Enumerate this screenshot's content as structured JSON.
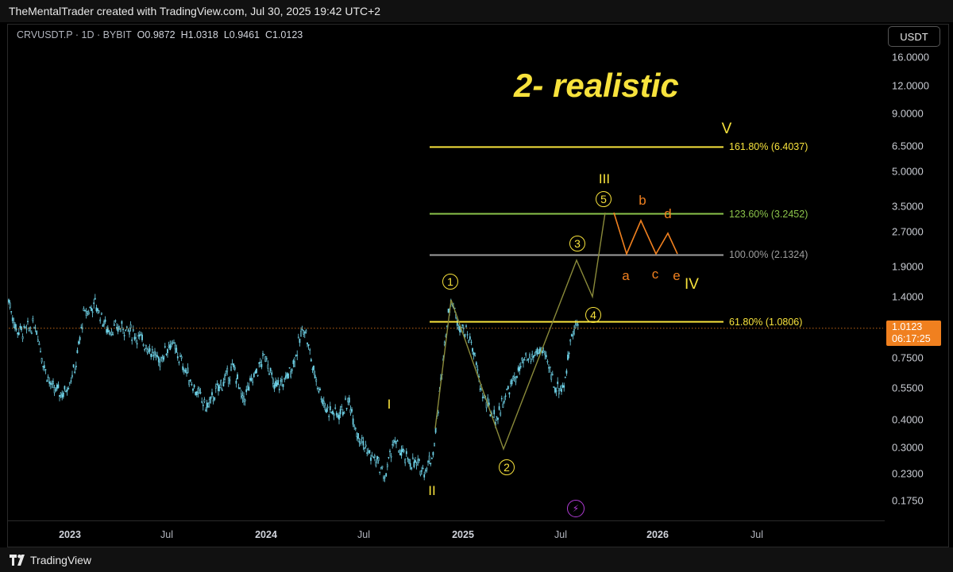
{
  "header": {
    "attribution": "TheMentalTrader created with TradingView.com, Jul 30, 2025 19:42 UTC+2"
  },
  "legend": {
    "symbol": "CRVUSDT.P · 1D · BYBIT",
    "open_label": "O",
    "open": "0.9872",
    "high_label": "H",
    "high": "1.0318",
    "low_label": "L",
    "low": "0.9461",
    "close_label": "C",
    "close": "1.0123"
  },
  "currency_button": "USDT",
  "price_axis": {
    "scale": "log",
    "ticks": [
      "16.0000",
      "12.0000",
      "9.0000",
      "6.5000",
      "5.0000",
      "3.5000",
      "2.7000",
      "1.9000",
      "1.4000",
      "0.7500",
      "0.5500",
      "0.4000",
      "0.3000",
      "0.2300",
      "0.1750"
    ],
    "current_price": "1.0123",
    "countdown": "06:17:25"
  },
  "time_axis": {
    "labels": [
      {
        "text": "2023",
        "year": true
      },
      {
        "text": "Jul",
        "year": false
      },
      {
        "text": "2024",
        "year": true
      },
      {
        "text": "Jul",
        "year": false
      },
      {
        "text": "2025",
        "year": true
      },
      {
        "text": "Jul",
        "year": false
      },
      {
        "text": "2026",
        "year": true
      },
      {
        "text": "Jul",
        "year": false
      }
    ]
  },
  "chart_data": {
    "type": "line",
    "title": "2- realistic",
    "y_scale": "log",
    "fib_levels": [
      {
        "label": "161.80% (6.4037)",
        "value": 6.4037,
        "color": "#f7e23c"
      },
      {
        "label": "123.60% (3.2452)",
        "value": 3.2452,
        "color": "#8bc34a"
      },
      {
        "label": "100.00% (2.1324)",
        "value": 2.1324,
        "color": "#9e9e9e"
      },
      {
        "label": "61.80% (1.0806)",
        "value": 1.0806,
        "color": "#f7e23c"
      }
    ],
    "wave_labels": {
      "primary": [
        "I",
        "II",
        "III",
        "IV",
        "V"
      ],
      "minor": [
        "1",
        "2",
        "3",
        "4",
        "5"
      ],
      "correction": [
        "a",
        "b",
        "c",
        "d",
        "e"
      ]
    },
    "series": [
      {
        "values": []
      }
    ]
  },
  "colors": {
    "candle": "#6fd3e8",
    "accent": "#f7e23c",
    "correction": "#f0801f",
    "price_tag": "#f0801f",
    "projection": "#8a8a3a"
  },
  "footer": {
    "brand": "TradingView"
  },
  "icons": {
    "bolt": "lightning-icon",
    "logo": "tradingview-logo-icon"
  }
}
